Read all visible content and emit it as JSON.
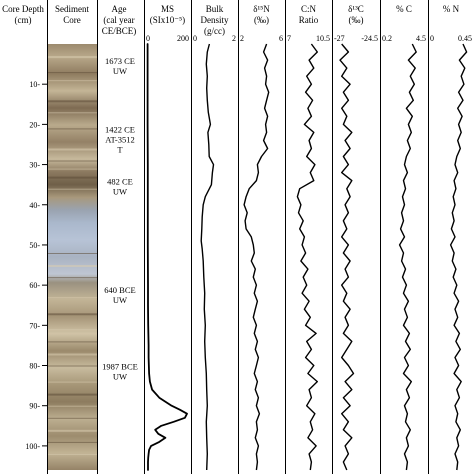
{
  "chart_data": {
    "type": "line",
    "layout": "stratigraphic core log, depth increasing downward",
    "depth_axis": {
      "title": [
        "Core Depth",
        "(cm)"
      ],
      "ticks": [
        10,
        20,
        30,
        40,
        50,
        60,
        70,
        80,
        90,
        100
      ],
      "range": [
        0,
        106
      ]
    },
    "core_column": {
      "title": [
        "Sediment",
        "Core"
      ]
    },
    "age_column": {
      "title": [
        "Age",
        "(cal year",
        "CE/BCE)"
      ],
      "labels": [
        {
          "depth": 5,
          "lines": [
            "1673 CE",
            "UW"
          ]
        },
        {
          "depth": 22,
          "lines": [
            "1422 CE",
            "AT-3512",
            "T"
          ]
        },
        {
          "depth": 35,
          "lines": [
            "482 CE",
            "UW"
          ]
        },
        {
          "depth": 62,
          "lines": [
            "640 BCE",
            "UW"
          ]
        },
        {
          "depth": 81,
          "lines": [
            "1987 BCE",
            "UW"
          ]
        }
      ]
    },
    "panels": [
      {
        "key": "ms",
        "title": [
          "MS",
          "(SIx10⁻⁵)"
        ],
        "xlim": [
          0,
          200
        ],
        "tick_labels": [
          "0",
          "200"
        ],
        "depth": [
          0,
          10,
          20,
          30,
          40,
          50,
          60,
          65,
          70,
          75,
          78,
          82,
          84,
          86,
          88,
          90,
          91,
          92,
          93,
          94,
          95,
          96,
          97,
          98,
          99,
          100,
          101,
          102,
          103,
          104,
          106
        ],
        "values": [
          3,
          3,
          3,
          4,
          4,
          4,
          5,
          5,
          6,
          8,
          8,
          10,
          14,
          25,
          60,
          120,
          160,
          195,
          185,
          130,
          70,
          40,
          55,
          90,
          60,
          20,
          10,
          8,
          6,
          5,
          5
        ]
      },
      {
        "key": "density",
        "title": [
          "Bulk",
          "Density",
          "(g/cc)"
        ],
        "xlim": [
          0,
          2
        ],
        "tick_labels": [
          "0",
          "2"
        ],
        "depth": [
          0,
          2,
          5,
          8,
          11,
          14,
          17,
          20,
          22,
          25,
          28,
          30,
          32,
          35,
          38,
          40,
          43,
          46,
          49,
          51,
          54,
          58,
          62,
          66,
          70,
          74,
          78,
          82,
          86,
          90,
          94,
          98,
          102,
          106
        ],
        "values": [
          0.75,
          0.65,
          0.6,
          0.65,
          0.62,
          0.65,
          0.7,
          0.8,
          0.68,
          0.72,
          0.74,
          0.95,
          0.9,
          0.85,
          0.55,
          0.45,
          0.4,
          0.38,
          0.35,
          0.4,
          0.45,
          0.48,
          0.52,
          0.5,
          0.55,
          0.52,
          0.55,
          0.6,
          0.62,
          0.65,
          0.6,
          0.62,
          0.65,
          0.62
        ]
      },
      {
        "key": "d15n",
        "title": [
          "δ¹⁵N",
          "(‰)"
        ],
        "xlim": [
          2,
          6
        ],
        "tick_labels": [
          "2",
          "6"
        ],
        "depth": [
          0,
          2,
          4,
          6,
          8,
          10,
          12,
          14,
          16,
          18,
          20,
          22,
          24,
          26,
          28,
          30,
          32,
          34,
          36,
          38,
          40,
          42,
          44,
          46,
          48,
          50,
          52,
          54,
          56,
          58,
          60,
          62,
          64,
          66,
          68,
          70,
          72,
          74,
          76,
          78,
          80,
          82,
          84,
          86,
          88,
          90,
          92,
          94,
          96,
          98,
          100,
          102,
          104,
          106
        ],
        "values": [
          4.5,
          4.2,
          4.6,
          4.3,
          4.5,
          4.4,
          4.7,
          4.5,
          4.3,
          4.6,
          4.4,
          4.5,
          4.2,
          4.6,
          4.0,
          3.6,
          3.7,
          3.5,
          2.8,
          2.5,
          2.3,
          2.6,
          2.4,
          2.5,
          3.0,
          3.2,
          3.3,
          3.0,
          3.4,
          3.2,
          3.5,
          3.3,
          3.6,
          3.4,
          3.2,
          3.5,
          3.3,
          3.6,
          3.4,
          3.7,
          3.5,
          3.3,
          3.6,
          3.4,
          3.7,
          3.5,
          3.8,
          3.5,
          3.6,
          3.4,
          3.7,
          3.5,
          3.6,
          3.5
        ]
      },
      {
        "key": "cn",
        "title": [
          "C:N",
          "Ratio"
        ],
        "xlim": [
          7,
          10.5
        ],
        "tick_labels": [
          "7",
          "10.5"
        ],
        "depth": [
          0,
          2,
          4,
          6,
          8,
          10,
          12,
          14,
          16,
          18,
          20,
          22,
          24,
          26,
          28,
          30,
          32,
          34,
          36,
          38,
          40,
          42,
          44,
          46,
          48,
          50,
          52,
          54,
          56,
          58,
          60,
          62,
          64,
          66,
          68,
          70,
          72,
          74,
          76,
          78,
          80,
          82,
          84,
          86,
          88,
          90,
          92,
          94,
          96,
          98,
          100,
          102,
          104,
          106
        ],
        "values": [
          9.0,
          9.5,
          8.8,
          9.2,
          8.6,
          9.0,
          8.5,
          9.1,
          8.7,
          9.0,
          8.4,
          9.2,
          8.8,
          9.0,
          8.6,
          9.3,
          8.9,
          9.2,
          8.0,
          7.8,
          8.1,
          7.9,
          8.3,
          8.0,
          8.4,
          8.2,
          8.5,
          8.1,
          8.7,
          8.3,
          8.6,
          8.2,
          8.8,
          8.4,
          8.9,
          8.5,
          9.4,
          8.6,
          9.0,
          8.5,
          9.2,
          8.7,
          9.5,
          8.8,
          9.0,
          8.6,
          9.3,
          8.9,
          9.1,
          8.7,
          9.4,
          8.8,
          9.0,
          8.9
        ]
      },
      {
        "key": "d13c",
        "title": [
          "δ¹³C",
          "(‰)"
        ],
        "xlim": [
          -27,
          -24.5
        ],
        "tick_labels": [
          "-27",
          "-24.5"
        ],
        "depth": [
          0,
          2,
          4,
          6,
          8,
          10,
          12,
          14,
          16,
          18,
          20,
          22,
          24,
          26,
          28,
          30,
          32,
          34,
          36,
          38,
          40,
          42,
          44,
          46,
          48,
          50,
          52,
          54,
          56,
          58,
          60,
          62,
          64,
          66,
          68,
          70,
          72,
          74,
          76,
          78,
          80,
          82,
          84,
          86,
          88,
          90,
          92,
          94,
          96,
          98,
          100,
          102,
          104,
          106
        ],
        "values": [
          -26.6,
          -26.2,
          -26.7,
          -26.3,
          -26.6,
          -26.1,
          -26.5,
          -26.2,
          -26.6,
          -26.3,
          -26.5,
          -26.0,
          -26.4,
          -26.1,
          -26.5,
          -26.2,
          -26.6,
          -26.0,
          -26.3,
          -26.1,
          -26.4,
          -26.2,
          -26.5,
          -26.3,
          -26.6,
          -26.2,
          -26.5,
          -26.1,
          -26.4,
          -26.2,
          -26.6,
          -26.3,
          -26.5,
          -26.1,
          -26.4,
          -26.2,
          -26.5,
          -26.0,
          -26.3,
          -26.6,
          -26.2,
          -25.9,
          -26.4,
          -26.0,
          -26.5,
          -26.1,
          -26.6,
          -26.2,
          -26.5,
          -26.0,
          -26.4,
          -26.2,
          -26.5,
          -26.3
        ]
      },
      {
        "key": "pc",
        "title": [
          "% C"
        ],
        "xlim": [
          0.2,
          4.5
        ],
        "tick_labels": [
          "0.2",
          "4.5"
        ],
        "depth": [
          0,
          2,
          4,
          6,
          8,
          10,
          12,
          14,
          16,
          18,
          20,
          22,
          24,
          26,
          28,
          30,
          32,
          34,
          36,
          38,
          40,
          42,
          44,
          46,
          48,
          50,
          52,
          54,
          56,
          58,
          60,
          62,
          64,
          66,
          68,
          70,
          72,
          74,
          76,
          78,
          80,
          82,
          84,
          86,
          88,
          90,
          92,
          94,
          96,
          98,
          100,
          102,
          104,
          106
        ],
        "values": [
          3.2,
          3.6,
          2.8,
          3.5,
          3.0,
          3.4,
          2.9,
          3.3,
          2.6,
          3.2,
          2.8,
          3.1,
          2.7,
          3.0,
          2.6,
          2.4,
          2.7,
          2.3,
          2.5,
          2.2,
          2.4,
          2.1,
          2.3,
          2.0,
          2.4,
          1.9,
          2.3,
          2.1,
          2.5,
          2.2,
          2.6,
          2.3,
          2.8,
          2.4,
          2.7,
          2.3,
          2.9,
          2.5,
          3.0,
          2.4,
          2.8,
          2.3,
          3.1,
          2.6,
          2.9,
          2.4,
          2.7,
          2.5,
          3.0,
          2.6,
          2.8,
          2.4,
          2.7,
          2.6
        ]
      },
      {
        "key": "pn",
        "title": [
          "% N"
        ],
        "xlim": [
          0,
          0.45
        ],
        "tick_labels": [
          "0",
          "0.45"
        ],
        "depth": [
          0,
          2,
          4,
          6,
          8,
          10,
          12,
          14,
          16,
          18,
          20,
          22,
          24,
          26,
          28,
          30,
          32,
          34,
          36,
          38,
          40,
          42,
          44,
          46,
          48,
          50,
          52,
          54,
          56,
          58,
          60,
          62,
          64,
          66,
          68,
          70,
          72,
          74,
          76,
          78,
          80,
          82,
          84,
          86,
          88,
          90,
          92,
          94,
          96,
          98,
          100,
          102,
          104,
          106
        ],
        "values": [
          0.36,
          0.4,
          0.32,
          0.38,
          0.34,
          0.37,
          0.31,
          0.36,
          0.3,
          0.35,
          0.31,
          0.34,
          0.3,
          0.33,
          0.29,
          0.27,
          0.3,
          0.26,
          0.28,
          0.25,
          0.27,
          0.24,
          0.26,
          0.23,
          0.27,
          0.22,
          0.26,
          0.24,
          0.28,
          0.25,
          0.29,
          0.26,
          0.31,
          0.27,
          0.3,
          0.26,
          0.32,
          0.28,
          0.33,
          0.27,
          0.31,
          0.26,
          0.34,
          0.29,
          0.32,
          0.27,
          0.3,
          0.28,
          0.33,
          0.29,
          0.31,
          0.27,
          0.3,
          0.29
        ]
      }
    ]
  }
}
